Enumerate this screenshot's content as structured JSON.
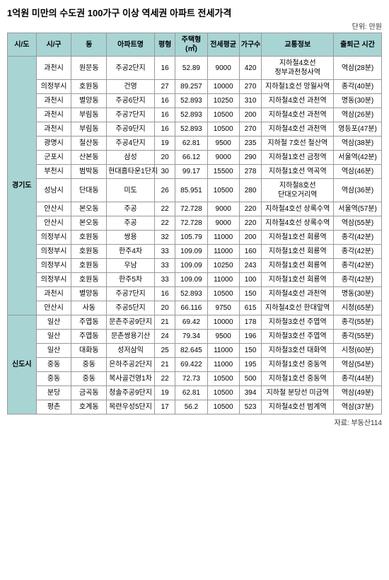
{
  "title": "1억원 미만의 수도권 100가구 이상 역세권 아파트 전세가격",
  "unit": "단위: 만원",
  "source": "자료: 부동산114",
  "columns": [
    "시/도",
    "시/구",
    "동",
    "아파트명",
    "평형",
    "주택형(㎡)",
    "전세평균",
    "가구수",
    "교통정보",
    "출퇴근 시간"
  ],
  "groups": [
    {
      "province": "경기도",
      "rows": [
        [
          "과천시",
          "원문동",
          "주공2단지",
          "16",
          "52.89",
          "9000",
          "420",
          "지하철4호선 정부과천청사역",
          "역삼(28분)"
        ],
        [
          "의정부시",
          "호원동",
          "건영",
          "27",
          "89.257",
          "10000",
          "270",
          "지하철1호선 망월사역",
          "종각(40분)"
        ],
        [
          "과천시",
          "별양동",
          "주공6단지",
          "16",
          "52.893",
          "10250",
          "310",
          "지하철4호선 과천역",
          "명동(30분)"
        ],
        [
          "과천시",
          "부림동",
          "주공7단지",
          "16",
          "52.893",
          "10500",
          "200",
          "지하철4호선 과천역",
          "역삼(26분)"
        ],
        [
          "과천시",
          "부림동",
          "주공9단지",
          "16",
          "52.893",
          "10500",
          "270",
          "지하철4호선 과천역",
          "영등포(47분)"
        ],
        [
          "광명시",
          "철산동",
          "주공4단지",
          "19",
          "62.81",
          "9500",
          "235",
          "지하철 7호선 철산역",
          "역삼(38분)"
        ],
        [
          "군포시",
          "산본동",
          "삼성",
          "20",
          "66.12",
          "9000",
          "290",
          "지하철1호선 금정역",
          "서울역(42분)"
        ],
        [
          "부천시",
          "범박동",
          "현대홈타운1단지",
          "30",
          "99.17",
          "15500",
          "278",
          "지하철1호선 역곡역",
          "역삼(46분)"
        ],
        [
          "성남시",
          "단대동",
          "미도",
          "26",
          "85.951",
          "10500",
          "280",
          "지하철8호선 단대오거리역",
          "역삼(36분)"
        ],
        [
          "안산시",
          "본오동",
          "주공",
          "22",
          "72.728",
          "9000",
          "220",
          "지하철4호선 상록수역",
          "서울역(57분)"
        ],
        [
          "안산시",
          "본오동",
          "주공",
          "22",
          "72.728",
          "9000",
          "220",
          "지하철4호선 상록수역",
          "역삼(55분)"
        ],
        [
          "의정부시",
          "호원동",
          "쌍용",
          "32",
          "105.79",
          "11000",
          "200",
          "지하철1호선 회룡역",
          "종각(42분)"
        ],
        [
          "의정부시",
          "호원동",
          "한주4차",
          "33",
          "109.09",
          "11000",
          "160",
          "지하철1호선 회룡역",
          "종각(42분)"
        ],
        [
          "의정부시",
          "호원동",
          "우남",
          "33",
          "109.09",
          "10250",
          "243",
          "지하철1호선 회룡역",
          "종각(42분)"
        ],
        [
          "의정부시",
          "호원동",
          "한주5차",
          "33",
          "109.09",
          "11000",
          "100",
          "지하철1호선 회룡역",
          "종각(42분)"
        ],
        [
          "과천시",
          "별양동",
          "주공7단지",
          "16",
          "52.893",
          "10500",
          "150",
          "지하철4호선 과천역",
          "명동(30분)"
        ],
        [
          "안산시",
          "사동",
          "주공5단지",
          "20",
          "66.116",
          "9750",
          "615",
          "지하철4호선 한대앞역",
          "시청(65분)"
        ]
      ]
    },
    {
      "province": "신도시",
      "rows": [
        [
          "일산",
          "주엽동",
          "문촌주공9단지",
          "21",
          "69.42",
          "10000",
          "178",
          "지하철3호선 주엽역",
          "종각(55분)"
        ],
        [
          "일산",
          "주엽동",
          "문촌쌍용기산",
          "24",
          "79.34",
          "9500",
          "196",
          "지하철3호선 주엽역",
          "종각(55분)"
        ],
        [
          "일산",
          "대화동",
          "성저삼익",
          "25",
          "82.645",
          "11000",
          "150",
          "지하철3호선 대화역",
          "시청(60분)"
        ],
        [
          "중동",
          "중동",
          "은하주공2단지",
          "21",
          "69.422",
          "11000",
          "195",
          "지하철1호선 중동역",
          "역삼(54분)"
        ],
        [
          "중동",
          "중동",
          "복사골건영1차",
          "22",
          "72.73",
          "10500",
          "500",
          "지하철1호선 중동역",
          "종각(44분)"
        ],
        [
          "분당",
          "금곡동",
          "청솔주공9단지",
          "19",
          "62.81",
          "10500",
          "394",
          "지하철 분당선 미금역",
          "역삼(49분)"
        ],
        [
          "평촌",
          "호계동",
          "목련우성5단지",
          "17",
          "56.2",
          "10500",
          "523",
          "지하철4호선 범계역",
          "역삼(37분)"
        ]
      ]
    }
  ]
}
